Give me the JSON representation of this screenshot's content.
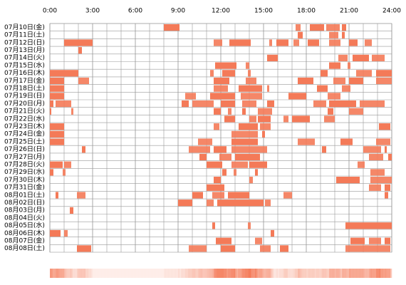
{
  "chart_data": {
    "type": "timeline",
    "color": "#f47a58",
    "xlim": [
      0,
      24
    ],
    "xticks": [
      {
        "value": 0,
        "label": "0:00"
      },
      {
        "value": 3,
        "label": "3:00"
      },
      {
        "value": 6,
        "label": "6:00"
      },
      {
        "value": 9,
        "label": "9:00"
      },
      {
        "value": 12,
        "label": "12:00"
      },
      {
        "value": 15,
        "label": "15:00"
      },
      {
        "value": 18,
        "label": "18:00"
      },
      {
        "value": 21,
        "label": "21:00"
      },
      {
        "value": 24,
        "label": "24:00"
      }
    ],
    "rows": [
      {
        "label": "07月10日(金)",
        "segments": [
          [
            8.0,
            9.1
          ],
          [
            17.25,
            17.6
          ],
          [
            18.25,
            19.25
          ],
          [
            19.4,
            20.35
          ],
          [
            20.5,
            20.8
          ]
        ]
      },
      {
        "label": "07月11日(土)",
        "segments": [
          [
            17.4,
            17.75
          ],
          [
            19.6,
            20.25
          ],
          [
            20.5,
            20.7
          ]
        ]
      },
      {
        "label": "07月12日(日)",
        "segments": [
          [
            1.0,
            3.0
          ],
          [
            11.5,
            12.1
          ],
          [
            12.6,
            14.1
          ],
          [
            15.4,
            15.6
          ],
          [
            15.9,
            16.75
          ],
          [
            17.1,
            17.5
          ],
          [
            18.1,
            18.9
          ],
          [
            19.6,
            20.4
          ],
          [
            21.0,
            21.6
          ],
          [
            22.1,
            22.6
          ]
        ]
      },
      {
        "label": "07月13日(月)",
        "segments": [
          [
            2.0,
            2.25
          ]
        ]
      },
      {
        "label": "07月14日(火)",
        "segments": [
          [
            15.25,
            16.0
          ],
          [
            20.25,
            20.9
          ],
          [
            21.25,
            22.4
          ],
          [
            22.6,
            23.5
          ]
        ]
      },
      {
        "label": "07月15日(水)",
        "segments": [
          [
            11.6,
            13.1
          ],
          [
            13.75,
            14.0
          ],
          [
            19.6,
            20.4
          ],
          [
            20.9,
            21.1
          ]
        ]
      },
      {
        "label": "07月16日(木)",
        "segments": [
          [
            0,
            2.0
          ],
          [
            11.25,
            11.5
          ],
          [
            12.1,
            13.0
          ],
          [
            13.9,
            14.1
          ],
          [
            19.0,
            19.5
          ],
          [
            21.5,
            22.6
          ],
          [
            22.9,
            24
          ]
        ]
      },
      {
        "label": "07月17日(金)",
        "segments": [
          [
            0,
            1.0
          ],
          [
            2.0,
            2.75
          ],
          [
            11.5,
            12.6
          ],
          [
            13.75,
            14.5
          ],
          [
            17.4,
            18.5
          ],
          [
            19.9,
            20.75
          ],
          [
            21,
            22
          ],
          [
            22.9,
            24
          ]
        ]
      },
      {
        "label": "07月18日(土)",
        "segments": [
          [
            0,
            1
          ],
          [
            11.5,
            12.5
          ],
          [
            13.25,
            14.9
          ],
          [
            15.25,
            15.4
          ],
          [
            18.75,
            19.5
          ],
          [
            20.5,
            21.1
          ]
        ]
      },
      {
        "label": "07月19日(日)",
        "segments": [
          [
            0,
            1
          ],
          [
            9.5,
            10.25
          ],
          [
            11.25,
            13.0
          ],
          [
            13.4,
            14.9
          ],
          [
            16.75,
            18.0
          ],
          [
            19.5,
            20.4
          ]
        ]
      },
      {
        "label": "07月20日(月)",
        "segments": [
          [
            0,
            0.25
          ],
          [
            0.4,
            1.5
          ],
          [
            9.25,
            9.75
          ],
          [
            10,
            11.5
          ],
          [
            12,
            13
          ],
          [
            13.5,
            14.5
          ],
          [
            15.25,
            15.75
          ],
          [
            18.5,
            19.4
          ],
          [
            19.6,
            21.5
          ],
          [
            21.75,
            23.5
          ]
        ]
      },
      {
        "label": "07月21日(火)",
        "segments": [
          [
            0,
            0.1
          ],
          [
            1.5,
            1.65
          ],
          [
            11.5,
            12
          ],
          [
            12.5,
            12.75
          ],
          [
            13.5,
            13.75
          ],
          [
            14.6,
            15.6
          ],
          [
            19.5,
            19.9
          ],
          [
            21,
            22
          ]
        ]
      },
      {
        "label": "07月22日(水)",
        "segments": [
          [
            12.25,
            13
          ],
          [
            14,
            14.5
          ],
          [
            14.6,
            15.5
          ],
          [
            16.4,
            16.75
          ],
          [
            17,
            18.25
          ],
          [
            19.25,
            20
          ]
        ]
      },
      {
        "label": "07月23日(木)",
        "segments": [
          [
            0,
            1
          ],
          [
            11.5,
            11.9
          ],
          [
            13.25,
            14.6
          ],
          [
            14.75,
            15.5
          ],
          [
            23.1,
            23.9
          ]
        ]
      },
      {
        "label": "07月24日(金)",
        "segments": [
          [
            0,
            1
          ],
          [
            12.75,
            14.6
          ],
          [
            14.9,
            15.1
          ]
        ]
      },
      {
        "label": "07月25日(土)",
        "segments": [
          [
            0,
            1
          ],
          [
            10.4,
            11.4
          ],
          [
            12.75,
            14.6
          ],
          [
            17.4,
            18.6
          ],
          [
            20.4,
            21.25
          ],
          [
            22.9,
            23.9
          ]
        ]
      },
      {
        "label": "07月26日(日)",
        "segments": [
          [
            2.25,
            2.5
          ],
          [
            9.75,
            11.25
          ],
          [
            11.5,
            12.4
          ],
          [
            12.75,
            15.25
          ],
          [
            19.1,
            19.4
          ],
          [
            22,
            23.25
          ],
          [
            23.5,
            23.65
          ]
        ]
      },
      {
        "label": "07月27日(月)",
        "segments": [
          [
            10.5,
            11
          ],
          [
            11.9,
            12.75
          ],
          [
            13,
            14.75
          ],
          [
            22.4,
            23.4
          ],
          [
            23.75,
            24
          ]
        ]
      },
      {
        "label": "07月28日(火)",
        "segments": [
          [
            0,
            0.9
          ],
          [
            1,
            1.5
          ],
          [
            11,
            12.1
          ],
          [
            12.75,
            13.9
          ],
          [
            14,
            15.25
          ],
          [
            21.6,
            22.1
          ]
        ]
      },
      {
        "label": "07月29日(水)",
        "segments": [
          [
            0,
            0.25
          ],
          [
            0.9,
            1.1
          ],
          [
            12.1,
            12.4
          ],
          [
            12.9,
            13.1
          ],
          [
            14.4,
            14.6
          ],
          [
            22.5,
            23.5
          ]
        ]
      },
      {
        "label": "07月30日(木)",
        "segments": [
          [
            11.5,
            12
          ],
          [
            14,
            14.25
          ],
          [
            20.1,
            21.75
          ],
          [
            22.5,
            24
          ]
        ]
      },
      {
        "label": "07月31日(金)",
        "segments": [
          [
            11,
            12.25
          ],
          [
            22.4,
            23.25
          ],
          [
            23.5,
            23.9
          ]
        ]
      },
      {
        "label": "08月01日(土)",
        "segments": [
          [
            0.4,
            0.6
          ],
          [
            1.9,
            2.5
          ],
          [
            10,
            10.75
          ],
          [
            11.4,
            12.25
          ],
          [
            12.5,
            14
          ],
          [
            16.4,
            17
          ],
          [
            23.5,
            23.75
          ]
        ]
      },
      {
        "label": "08月02日(日)",
        "segments": [
          [
            9,
            10
          ],
          [
            11,
            11.5
          ],
          [
            11.75,
            15.0
          ],
          [
            15.1,
            15.5
          ]
        ]
      },
      {
        "label": "08月03日(月)",
        "segments": [
          [
            1.4,
            1.65
          ]
        ]
      },
      {
        "label": "08月04日(火)",
        "segments": []
      },
      {
        "label": "08月05日(水)",
        "segments": [
          [
            11.4,
            11.6
          ],
          [
            13.9,
            14.1
          ],
          [
            20.75,
            24
          ]
        ]
      },
      {
        "label": "08月06日(木)",
        "segments": [
          [
            0,
            0.75
          ],
          [
            1,
            1.25
          ],
          [
            15.5,
            15.75
          ]
        ]
      },
      {
        "label": "08月07日(金)",
        "segments": [
          [
            11.65,
            12.75
          ],
          [
            14.4,
            14.9
          ],
          [
            21.1,
            22.1
          ],
          [
            22.4,
            23.25
          ],
          [
            23.5,
            23.9
          ]
        ]
      },
      {
        "label": "08月08日(土)",
        "segments": [
          [
            1.9,
            2.9
          ],
          [
            9.75,
            11
          ],
          [
            12,
            13
          ],
          [
            14.75,
            15.5
          ],
          [
            16.15,
            16.75
          ],
          [
            20.75,
            23.9
          ]
        ]
      }
    ]
  }
}
